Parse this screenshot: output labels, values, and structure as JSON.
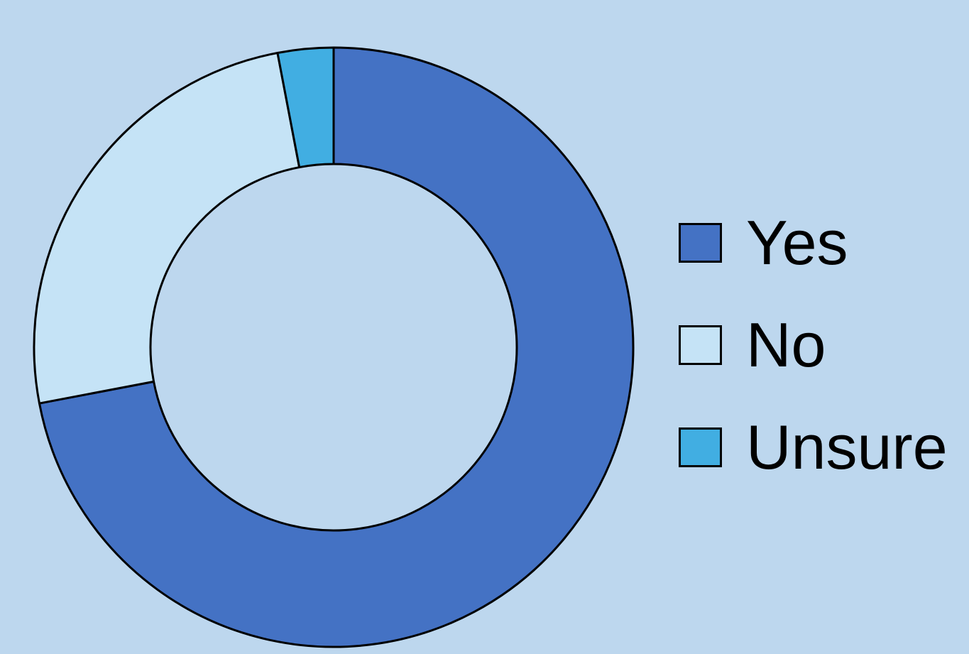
{
  "chart_data": {
    "type": "pie",
    "variant": "donut",
    "title": "",
    "categories": [
      "Yes",
      "No",
      "Unsure"
    ],
    "values": [
      72,
      25,
      3
    ],
    "colors": [
      "#4472C4",
      "#C5E3F6",
      "#41AEE2"
    ],
    "legend_position": "right",
    "background": "#BDD7EE"
  }
}
